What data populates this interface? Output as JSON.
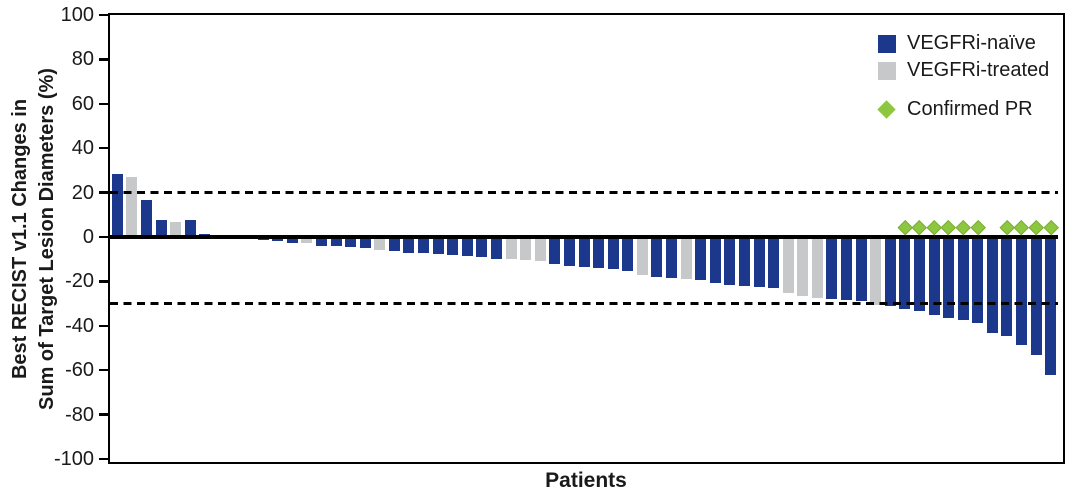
{
  "figure": {
    "background": "#ffffff"
  },
  "legend": {
    "position": "top-right",
    "items": [
      {
        "name": "vegfri-naive",
        "label": "VEGFRi-naïve",
        "marker": "square",
        "color": "#1c388c"
      },
      {
        "name": "vegfri-treated",
        "label": "VEGFRi-treated",
        "marker": "square",
        "color": "#c7c8ca"
      },
      {
        "name": "confirmed-pr",
        "label": "Confirmed PR",
        "marker": "diamond",
        "color": "#8dc63f"
      }
    ]
  },
  "chart_data": {
    "type": "bar",
    "subtype": "waterfall",
    "title": "",
    "xlabel": "Patients",
    "ylabel_line1": "Best RECIST v1.1 Changes in",
    "ylabel_line2": "Sum of Target Lesion Diameters (%)",
    "ylim": [
      -100,
      100
    ],
    "yticks": [
      100,
      80,
      60,
      40,
      20,
      0,
      -20,
      -40,
      -60,
      -80,
      -100
    ],
    "reference_lines": [
      20,
      -30
    ],
    "grid": false,
    "legend_position": "top-right",
    "series_colors": {
      "naive": "#1c388c",
      "treated": "#c7c8ca",
      "pr_marker": "#8dc63f",
      "pr_marker_edge": "#79ad33",
      "axis": "#000000"
    },
    "pr_marker_value": 4.5,
    "patients": [
      {
        "v": 28.5,
        "g": "naive",
        "pr": false
      },
      {
        "v": 27,
        "g": "treated",
        "pr": false
      },
      {
        "v": 16.5,
        "g": "naive",
        "pr": false
      },
      {
        "v": 7.5,
        "g": "naive",
        "pr": false
      },
      {
        "v": 7,
        "g": "treated",
        "pr": false
      },
      {
        "v": 7.5,
        "g": "naive",
        "pr": false
      },
      {
        "v": 1.5,
        "g": "naive",
        "pr": false
      },
      {
        "v": 0,
        "g": "naive",
        "pr": false
      },
      {
        "v": 0,
        "g": "naive",
        "pr": false
      },
      {
        "v": 0,
        "g": "naive",
        "pr": false
      },
      {
        "v": -1.5,
        "g": "naive",
        "pr": false
      },
      {
        "v": -2,
        "g": "naive",
        "pr": false
      },
      {
        "v": -2.5,
        "g": "naive",
        "pr": false
      },
      {
        "v": -2.5,
        "g": "treated",
        "pr": false
      },
      {
        "v": -4,
        "g": "naive",
        "pr": false
      },
      {
        "v": -4,
        "g": "naive",
        "pr": false
      },
      {
        "v": -4.5,
        "g": "naive",
        "pr": false
      },
      {
        "v": -5,
        "g": "naive",
        "pr": false
      },
      {
        "v": -6,
        "g": "treated",
        "pr": false
      },
      {
        "v": -6.5,
        "g": "naive",
        "pr": false
      },
      {
        "v": -7,
        "g": "naive",
        "pr": false
      },
      {
        "v": -7,
        "g": "naive",
        "pr": false
      },
      {
        "v": -7.5,
        "g": "naive",
        "pr": false
      },
      {
        "v": -8,
        "g": "naive",
        "pr": false
      },
      {
        "v": -8.5,
        "g": "naive",
        "pr": false
      },
      {
        "v": -9,
        "g": "naive",
        "pr": false
      },
      {
        "v": -10,
        "g": "naive",
        "pr": false
      },
      {
        "v": -10,
        "g": "treated",
        "pr": false
      },
      {
        "v": -10.5,
        "g": "treated",
        "pr": false
      },
      {
        "v": -11,
        "g": "treated",
        "pr": false
      },
      {
        "v": -12,
        "g": "naive",
        "pr": false
      },
      {
        "v": -13,
        "g": "naive",
        "pr": false
      },
      {
        "v": -13.5,
        "g": "naive",
        "pr": false
      },
      {
        "v": -14,
        "g": "naive",
        "pr": false
      },
      {
        "v": -14.5,
        "g": "naive",
        "pr": false
      },
      {
        "v": -15.5,
        "g": "naive",
        "pr": false
      },
      {
        "v": -17,
        "g": "treated",
        "pr": false
      },
      {
        "v": -18,
        "g": "naive",
        "pr": false
      },
      {
        "v": -18.5,
        "g": "naive",
        "pr": false
      },
      {
        "v": -19,
        "g": "treated",
        "pr": false
      },
      {
        "v": -19.5,
        "g": "naive",
        "pr": false
      },
      {
        "v": -20.5,
        "g": "naive",
        "pr": false
      },
      {
        "v": -21.5,
        "g": "naive",
        "pr": false
      },
      {
        "v": -22,
        "g": "naive",
        "pr": false
      },
      {
        "v": -22.5,
        "g": "naive",
        "pr": false
      },
      {
        "v": -23,
        "g": "naive",
        "pr": false
      },
      {
        "v": -25,
        "g": "treated",
        "pr": false
      },
      {
        "v": -26.5,
        "g": "treated",
        "pr": false
      },
      {
        "v": -27.5,
        "g": "treated",
        "pr": false
      },
      {
        "v": -28,
        "g": "naive",
        "pr": false
      },
      {
        "v": -28.5,
        "g": "naive",
        "pr": false
      },
      {
        "v": -29,
        "g": "naive",
        "pr": false
      },
      {
        "v": -30.5,
        "g": "treated",
        "pr": false
      },
      {
        "v": -31,
        "g": "naive",
        "pr": false
      },
      {
        "v": -32.5,
        "g": "naive",
        "pr": true
      },
      {
        "v": -33.5,
        "g": "naive",
        "pr": true
      },
      {
        "v": -35,
        "g": "naive",
        "pr": true
      },
      {
        "v": -36.5,
        "g": "naive",
        "pr": true
      },
      {
        "v": -37.5,
        "g": "naive",
        "pr": true
      },
      {
        "v": -38.5,
        "g": "naive",
        "pr": true
      },
      {
        "v": -43,
        "g": "naive",
        "pr": false
      },
      {
        "v": -44.5,
        "g": "naive",
        "pr": true
      },
      {
        "v": -48.5,
        "g": "naive",
        "pr": true
      },
      {
        "v": -53,
        "g": "naive",
        "pr": true
      },
      {
        "v": -62,
        "g": "naive",
        "pr": true
      }
    ]
  }
}
